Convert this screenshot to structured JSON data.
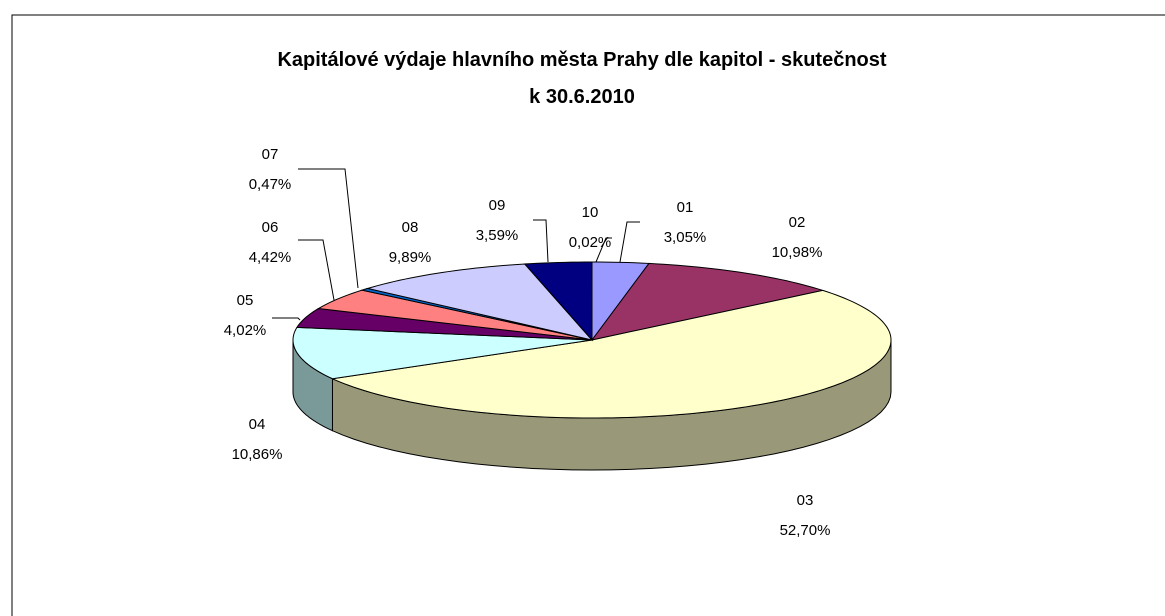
{
  "chart_data": {
    "type": "pie3d",
    "title": [
      "Kapitálové výdaje hlavního města Prahy dle kapitol - skutečnost",
      "k 30.6.2010"
    ],
    "categories": [
      "01",
      "02",
      "03",
      "04",
      "05",
      "06",
      "07",
      "08",
      "09",
      "10"
    ],
    "values": [
      3.05,
      10.98,
      52.7,
      10.86,
      4.02,
      4.42,
      0.47,
      9.89,
      3.59,
      0.02
    ],
    "value_labels": [
      "3,05%",
      "10,98%",
      "52,70%",
      "10,86%",
      "4,02%",
      "4,42%",
      "0,47%",
      "9,89%",
      "3,59%",
      "0,02%"
    ],
    "colors": [
      "#9999ff",
      "#993366",
      "#ffffcc",
      "#ccffff",
      "#660066",
      "#ff8080",
      "#0066cc",
      "#ccccff",
      "#000080",
      "#ff00ff"
    ]
  }
}
